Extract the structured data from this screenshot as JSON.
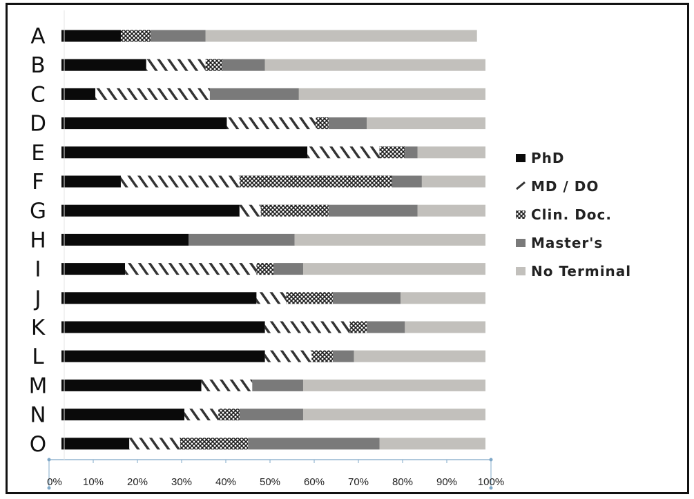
{
  "chart_data": {
    "type": "bar",
    "orientation": "horizontal",
    "stacked": true,
    "categories": [
      "A",
      "B",
      "C",
      "D",
      "E",
      "F",
      "G",
      "H",
      "I",
      "J",
      "K",
      "L",
      "M",
      "N",
      "O"
    ],
    "series": [
      {
        "name": "PhD",
        "color": "#0a0a0a",
        "pattern": "solid",
        "values": [
          14,
          20,
          8,
          39,
          58,
          14,
          42,
          30,
          15,
          46,
          48,
          48,
          33,
          29,
          16
        ]
      },
      {
        "name": "MD / DO",
        "color": "#ffffff",
        "pattern": "diagonal-hatch",
        "values": [
          0,
          14,
          27,
          21,
          17,
          28,
          5,
          0,
          31,
          7,
          20,
          11,
          12,
          8,
          12
        ]
      },
      {
        "name": "Clin. Doc.",
        "color": "#ffffff",
        "pattern": "crosshatch",
        "values": [
          7,
          4,
          0,
          3,
          6,
          36,
          16,
          0,
          4,
          11,
          4,
          5,
          0,
          5,
          16
        ]
      },
      {
        "name": "Master's",
        "color": "#7a7a7a",
        "pattern": "solid",
        "values": [
          13,
          10,
          21,
          9,
          3,
          7,
          21,
          25,
          7,
          16,
          9,
          5,
          12,
          15,
          31
        ]
      },
      {
        "name": "No Terminal",
        "color": "#c2c0bc",
        "pattern": "solid",
        "values": [
          64,
          52,
          44,
          28,
          16,
          15,
          16,
          45,
          43,
          20,
          19,
          31,
          43,
          43,
          25
        ]
      }
    ],
    "xticks": [
      "0%",
      "10%",
      "20%",
      "30%",
      "40%",
      "50%",
      "60%",
      "70%",
      "80%",
      "90%",
      "100%"
    ],
    "xlim": [
      0,
      100
    ],
    "title": "",
    "xlabel": "",
    "ylabel": "",
    "legend_position": "right",
    "grid": false
  }
}
